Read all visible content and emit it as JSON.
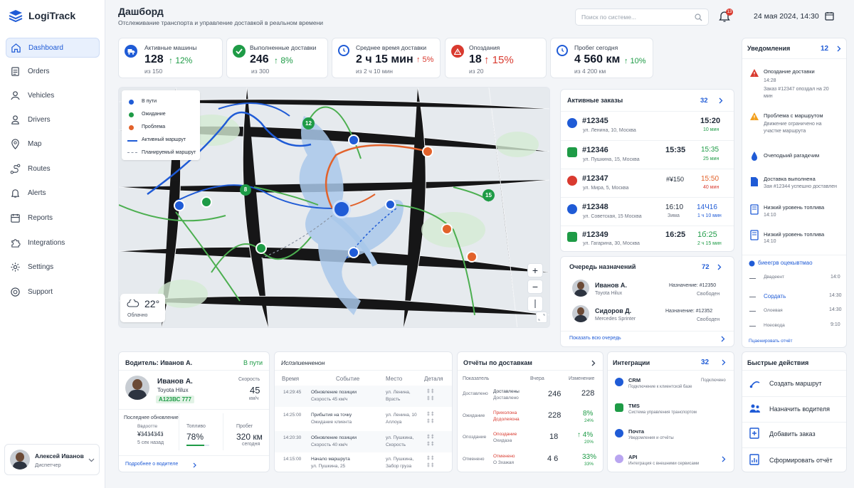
{
  "app": {
    "name": "LogiTrack"
  },
  "sidebar": {
    "items": [
      {
        "label": "Dashboard"
      },
      {
        "label": "Orders"
      },
      {
        "label": "Vehicles"
      },
      {
        "label": "Drivers"
      },
      {
        "label": "Map"
      },
      {
        "label": "Routes"
      },
      {
        "label": "Alerts"
      },
      {
        "label": "Reports"
      },
      {
        "label": "Integrations"
      },
      {
        "label": "Settings"
      },
      {
        "label": "Support"
      }
    ],
    "user": {
      "name": "Алексей Иванов",
      "role": "Диспетчер"
    }
  },
  "header": {
    "title": "Дашборд",
    "subtitle": "Отслеживание транспорта и управление доставкой в реальном времени",
    "search_placeholder": "Поиск по системе...",
    "notif_count": "13",
    "datetime": "24 мая 2024, 14:30"
  },
  "kpis": [
    {
      "label": "Активные машины",
      "value": "128",
      "delta": "↑ 12%",
      "sub": "из 150",
      "color": "#1f5bd6",
      "trend": "up-good"
    },
    {
      "label": "Выполненные доставки",
      "value": "246",
      "delta": "↑ 8%",
      "sub": "из 300",
      "color": "#1e9b46",
      "trend": "up-good"
    },
    {
      "label": "Среднее время доставки",
      "value": "2 ч 15 мин",
      "delta": "↑ 5%",
      "sub": "из 2 ч 10 мин",
      "color": "#1f5bd6",
      "trend": "up-bad"
    },
    {
      "label": "Опоздания",
      "value": "18",
      "delta": "↑ 15%",
      "sub": "из 20",
      "color": "#d93a2f",
      "trend": "up-bad"
    },
    {
      "label": "Пробег сегодня",
      "value": "4 560 км",
      "delta": "↑ 10%",
      "sub": "из 4 200 км",
      "color": "#1f5bd6",
      "trend": "up-good"
    }
  ],
  "map": {
    "legend": [
      {
        "label": "В пути",
        "color": "#1f5bd6"
      },
      {
        "label": "Ожидание",
        "color": "#1e9b46"
      },
      {
        "label": "Проблема",
        "color": "#e2622b"
      },
      {
        "label": "Активный маршрут",
        "color": "#1f5bd6"
      },
      {
        "label": "Планируемый маршрут",
        "color": "#8a94a3"
      }
    ],
    "weather": {
      "temp": "22°",
      "desc": "Облачно"
    },
    "markers": [
      {
        "label": "12"
      },
      {
        "label": "8"
      },
      {
        "label": "15"
      }
    ],
    "zoom_in": "+",
    "zoom_out": "−"
  },
  "orders": {
    "title": "Активные заказы",
    "count": "32",
    "items": [
      {
        "id": "#12345",
        "address": "ул. Ленина, 10, Москва",
        "time": "15:20",
        "eta": "",
        "eta2": "10 мин",
        "color": "#1f5bd6",
        "status": "blue"
      },
      {
        "id": "#12346",
        "address": "ул. Пушкина, 15, Москва",
        "time": "15:35",
        "eta": "15:35",
        "eta2": "25 мин",
        "color": "#1e9b46",
        "status": "green"
      },
      {
        "id": "#12347",
        "address": "ул. Мира, 5, Москва",
        "time": "#¥150",
        "eta": "15:50",
        "eta2": "40 мин",
        "color": "#d93a2f",
        "status": "red"
      },
      {
        "id": "#12348",
        "address": "ул. Советская, 15 Москва",
        "time": "16:10",
        "time2": "Зима",
        "eta": "14Ч16",
        "eta2": "1 ч 10 мин",
        "color": "#1f5bd6",
        "status": "blue"
      },
      {
        "id": "#12349",
        "address": "ул. Гагарина, 30, Москва",
        "time": "16:25",
        "eta": "1б:25",
        "eta2": "2 ч 15 мин",
        "color": "#1e9b46",
        "status": "green"
      }
    ]
  },
  "queue": {
    "title": "Очередь назначений",
    "count": "72",
    "link": "Показать всю очередь",
    "items": [
      {
        "name": "Иванов А.",
        "vehicle": "Toyota Hilux",
        "assign": "Назначение: #12350",
        "state": "Свободен"
      },
      {
        "name": "Сидоров Д.",
        "vehicle": "Mercedes Sprinter",
        "assign": "Назначение: #12352",
        "state": "Свободен"
      }
    ]
  },
  "notifications": {
    "title": "Уведомления",
    "count": "12",
    "items": [
      {
        "title": "Опоздание доставки",
        "time": "14:28",
        "text": "Заказ #12347 опоздал на 20 мин",
        "color": "#d93a2f"
      },
      {
        "title": "Проблема с маршрутом",
        "text": "Движение ограничено на участке маршрута",
        "color": "#f29f1d"
      },
      {
        "title": "Очеподыий рагадкчим",
        "text": "",
        "color": "#1f5bd6"
      },
      {
        "title": "Доставка выполнена",
        "text": "Зая #12344 успешно доставлен",
        "color": "#1f5bd6"
      },
      {
        "title": "Низкий уровень топлива",
        "text": "14:10",
        "color": "#1f5bd6"
      },
      {
        "title": "Низкий уровень топлива",
        "text": "14:10",
        "color": "#1f5bd6"
      }
    ],
    "sub": {
      "title": "биеегрв оцекывтмао",
      "rows": [
        {
          "label": "Двадеент",
          "time": "14:0"
        },
        {
          "label": "Сордать",
          "time": "14:30"
        },
        {
          "label": "Олоевая",
          "time": "14:30"
        },
        {
          "label": "Ноеовода",
          "time": "9:10"
        }
      ],
      "link": "Пцаенировать отчёт"
    }
  },
  "driver": {
    "title": "Водитель: Иванов А.",
    "status": "В пути",
    "name": "Иванов А.",
    "car": "Toyota Hilux",
    "plate": "А123ВС 777",
    "speed_label": "Скорость",
    "speed": "45",
    "speed_unit": "км/ч",
    "last_update_label": "Последнее обновление",
    "last_update_val": "Ввдоотте",
    "last_update_big": "¥ӟ4ӟ4ӟ4ӟ",
    "last_update_ago": "5 сек назад",
    "fuel_label": "Топливо",
    "fuel": "78%",
    "fuel_level": 0.78,
    "mileage_label": "Пробег",
    "mileage": "320 км",
    "mileage_sub": "сегодня",
    "link": "Подробнее о водителе"
  },
  "history": {
    "title": "Испэлиенненон",
    "cols": [
      "Время",
      "Событие",
      "Место",
      "Деталя"
    ],
    "rows": [
      {
        "time": "14:29:45",
        "event": "Обновление позиции",
        "event2": "Скорость 45 км/ч",
        "place": "ул. Ленина,",
        "place2": "Врзсть",
        "detail": "‡ ‡",
        "detail2": "‡ ‡"
      },
      {
        "time": "14:25:00",
        "event": "Прибытия на точку",
        "event2": "Ожидание клиента",
        "place": "ул. Ленина, 10",
        "place2": "Аллоуа",
        "detail": "‡ ‡",
        "detail2": "‡ ‡"
      },
      {
        "time": "14:20:30",
        "event": "Обновление позиции",
        "event2": "Скорость 40 км/ч",
        "place": "ул. Пушкина,",
        "place2": "Скорость",
        "detail": "‡ ‡",
        "detail2": "‡ ‡"
      },
      {
        "time": "14:15:00",
        "event": "Начало маршрута",
        "event2": "ул. Пушкина, 25",
        "place": "ул. Пушкина,",
        "place2": "Забор груза",
        "detail": "‡ ‡",
        "detail2": "‡ ‡"
      }
    ]
  },
  "reports": {
    "title": "Отчёты по доставкам",
    "cols": [
      "Показатель",
      "Вчера",
      "Изменение"
    ],
    "rows": [
      {
        "k": "Доставлено",
        "name": "Доставлены",
        "name2": "Доставлено",
        "a": "246",
        "b": "228",
        "change": "",
        "color": "#1f2937"
      },
      {
        "k": "Ожидание",
        "name": "Прихолона",
        "name2": "Дсдолеяона",
        "a": "228",
        "b": "8%",
        "change": "24%",
        "color": "#d93a2f"
      },
      {
        "k": "Опоздание",
        "name": "Опоздание",
        "name2": "Охидаэа",
        "a": "18",
        "b": "↑ 4%",
        "change": "20%",
        "color": "#d93a2f"
      },
      {
        "k": "Отменено",
        "name": "Отменено",
        "name2": "О Зхажая",
        "a": "4 6",
        "b": "33%",
        "change": "33%",
        "color": "#d93a2f"
      }
    ]
  },
  "integrations": {
    "title": "Интеграции",
    "count": "32",
    "items": [
      {
        "name": "CRM",
        "desc": "Подключение к клиентской базе",
        "state": "Подключено",
        "color": "#1f5bd6"
      },
      {
        "name": "TMS",
        "desc": "Система управления транспортом",
        "state": "",
        "color": "#1e9b46"
      },
      {
        "name": "Почта",
        "desc": "Уведомления и отчёты",
        "state": "",
        "color": "#1f5bd6"
      },
      {
        "name": "API",
        "desc": "Интеграция с внешними сервисами",
        "state": "",
        "color": "#8b5cf6"
      }
    ]
  },
  "quick": {
    "title": "Быстрые действия",
    "items": [
      {
        "label": "Создать маршрут"
      },
      {
        "label": "Назначить водителя"
      },
      {
        "label": "Добавить заказ"
      },
      {
        "label": "Сформировать отчёт"
      }
    ]
  }
}
